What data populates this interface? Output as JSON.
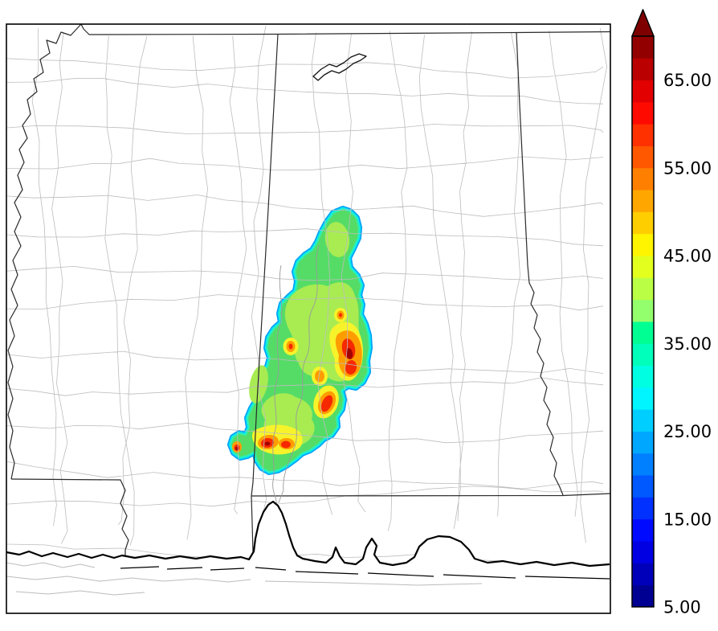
{
  "page": {
    "background_color": "#ffffff",
    "frame_color": "#000000"
  },
  "map_colors": {
    "county_line": "#bdbdbd",
    "state_line": "#2a2a2a",
    "coast_line": "#000000",
    "river_line": "#9a9a9a",
    "marsh_line": "#bbbbbb"
  },
  "plume_palette": {
    "rim_blue": "#00A2F5",
    "rim_cyan": "#00EDF5",
    "rim_teal": "#2BF0B4",
    "green": "#55DC66",
    "light_green": "#A8EC52",
    "yellow": "#F7F32B",
    "orange": "#FF9D00",
    "red": "#F52800",
    "dark_red": "#A30000"
  },
  "chart_data": {
    "type": "heatmap",
    "title": "",
    "legend_position": "right",
    "colorbar": {
      "orientation": "vertical",
      "range_min": 5,
      "range_max": 70,
      "extend": "max",
      "segment_step": 2.5,
      "colormap": "jet",
      "ticks": [
        5,
        15,
        25,
        35,
        45,
        55,
        65
      ],
      "tick_labels": [
        "5.00",
        "15.00",
        "25.00",
        "35.00",
        "45.00",
        "55.00",
        "65.00"
      ],
      "arrow_color": "#7F0000",
      "segment_colors": [
        "#000093",
        "#0000BA",
        "#0000E2",
        "#000AFF",
        "#0031FF",
        "#0058FF",
        "#0080FF",
        "#00A7FF",
        "#00CEFF",
        "#00F5FF",
        "#00FFE2",
        "#00FFBA",
        "#00FF93",
        "#93FF6C",
        "#BAFF45",
        "#E2FF1D",
        "#FFF500",
        "#FFCE00",
        "#FFA700",
        "#FF8000",
        "#FF5800",
        "#FF3100",
        "#FF0A00",
        "#E20000",
        "#BA0000",
        "#930000"
      ]
    }
  }
}
